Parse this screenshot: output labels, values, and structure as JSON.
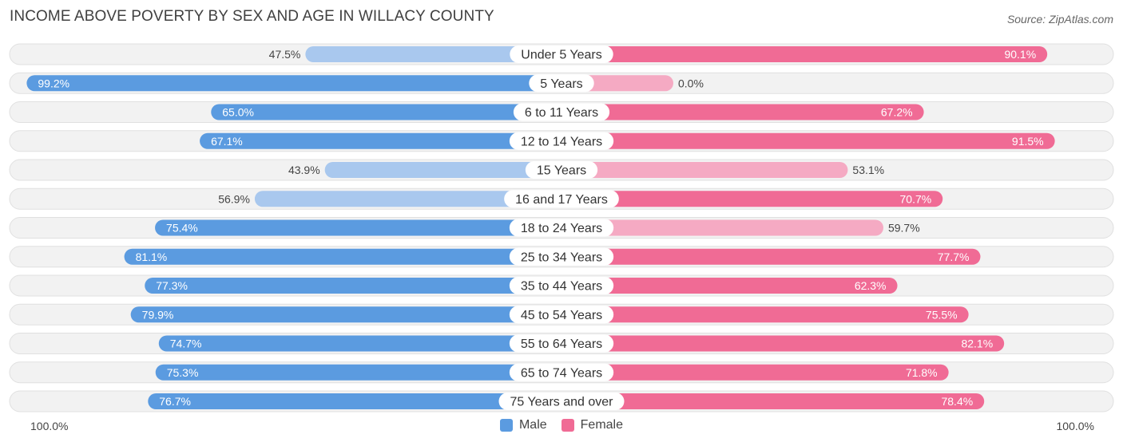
{
  "header": {
    "title": "INCOME ABOVE POVERTY BY SEX AND AGE IN WILLACY COUNTY",
    "source": "Source: ZipAtlas.com"
  },
  "colors": {
    "male_strong": "#5b9be0",
    "male_light": "#a9c8ee",
    "female_strong": "#f06b95",
    "female_light": "#f5aac3",
    "row_bg": "#f2f2f2",
    "row_border": "#e0e0e0"
  },
  "axis": {
    "left_label": "100.0%",
    "right_label": "100.0%"
  },
  "legend": {
    "male_label": "Male",
    "female_label": "Female"
  },
  "chart_data": {
    "type": "bar",
    "orientation": "horizontal-diverging",
    "title": "INCOME ABOVE POVERTY BY SEX AND AGE IN WILLACY COUNTY",
    "xlim": [
      -100,
      100
    ],
    "categories": [
      "Under 5 Years",
      "5 Years",
      "6 to 11 Years",
      "12 to 14 Years",
      "15 Years",
      "16 and 17 Years",
      "18 to 24 Years",
      "25 to 34 Years",
      "35 to 44 Years",
      "45 to 54 Years",
      "55 to 64 Years",
      "65 to 74 Years",
      "75 Years and over"
    ],
    "series": [
      {
        "name": "Male",
        "values": [
          47.5,
          99.2,
          65.0,
          67.1,
          43.9,
          56.9,
          75.4,
          81.1,
          77.3,
          79.9,
          74.7,
          75.3,
          76.7
        ],
        "labels": [
          "47.5%",
          "99.2%",
          "65.0%",
          "67.1%",
          "43.9%",
          "56.9%",
          "75.4%",
          "81.1%",
          "77.3%",
          "79.9%",
          "74.7%",
          "75.3%",
          "76.7%"
        ]
      },
      {
        "name": "Female",
        "values": [
          90.1,
          0.0,
          67.2,
          91.5,
          53.1,
          70.7,
          59.7,
          77.7,
          62.3,
          75.5,
          82.1,
          71.8,
          78.4
        ],
        "labels": [
          "90.1%",
          "0.0%",
          "67.2%",
          "91.5%",
          "53.1%",
          "70.7%",
          "59.7%",
          "77.7%",
          "62.3%",
          "75.5%",
          "82.1%",
          "71.8%",
          "78.4%"
        ]
      }
    ]
  }
}
